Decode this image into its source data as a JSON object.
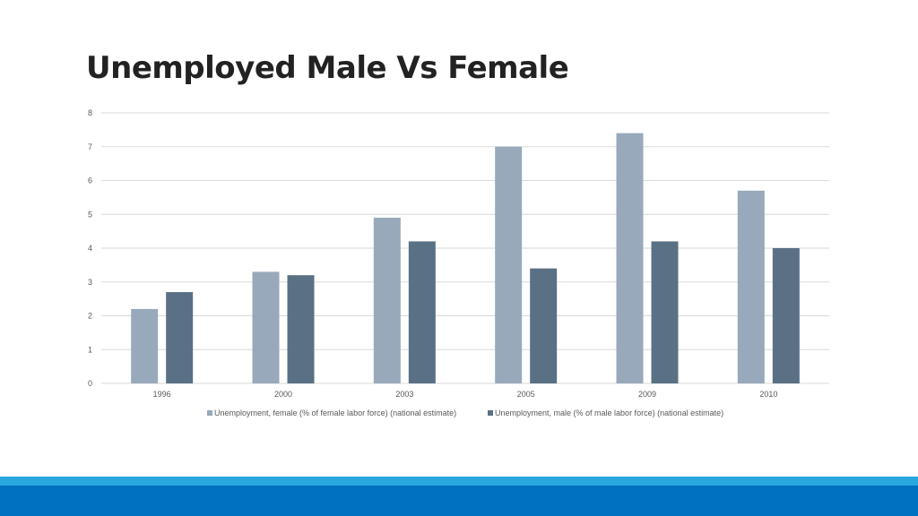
{
  "slide": {
    "title": "Unemployed Male Vs Female"
  },
  "chart_data": {
    "type": "bar",
    "title": "Unemployed Male Vs Female",
    "xlabel": "",
    "ylabel": "",
    "categories": [
      "1996",
      "2000",
      "2003",
      "2005",
      "2009",
      "2010"
    ],
    "ylim": [
      0,
      8
    ],
    "yticks": [
      "0",
      "1",
      "2",
      "3",
      "4",
      "5",
      "6",
      "7",
      "8"
    ],
    "grid": true,
    "legend_position": "bottom",
    "series": [
      {
        "name": "Unemployment, female (% of female labor force) (national estimate)",
        "color": "#97a9ba",
        "values": [
          2.2,
          3.3,
          4.9,
          7.0,
          7.4,
          5.7
        ]
      },
      {
        "name": "Unemployment, male (% of male labor force) (national estimate)",
        "color": "#5a7085",
        "values": [
          2.7,
          3.2,
          4.2,
          3.4,
          4.2,
          4.0
        ]
      }
    ]
  },
  "theme": {
    "band_light": "#29a8e0",
    "band_dark": "#0070c0",
    "grid_color": "#d9d9d9"
  }
}
